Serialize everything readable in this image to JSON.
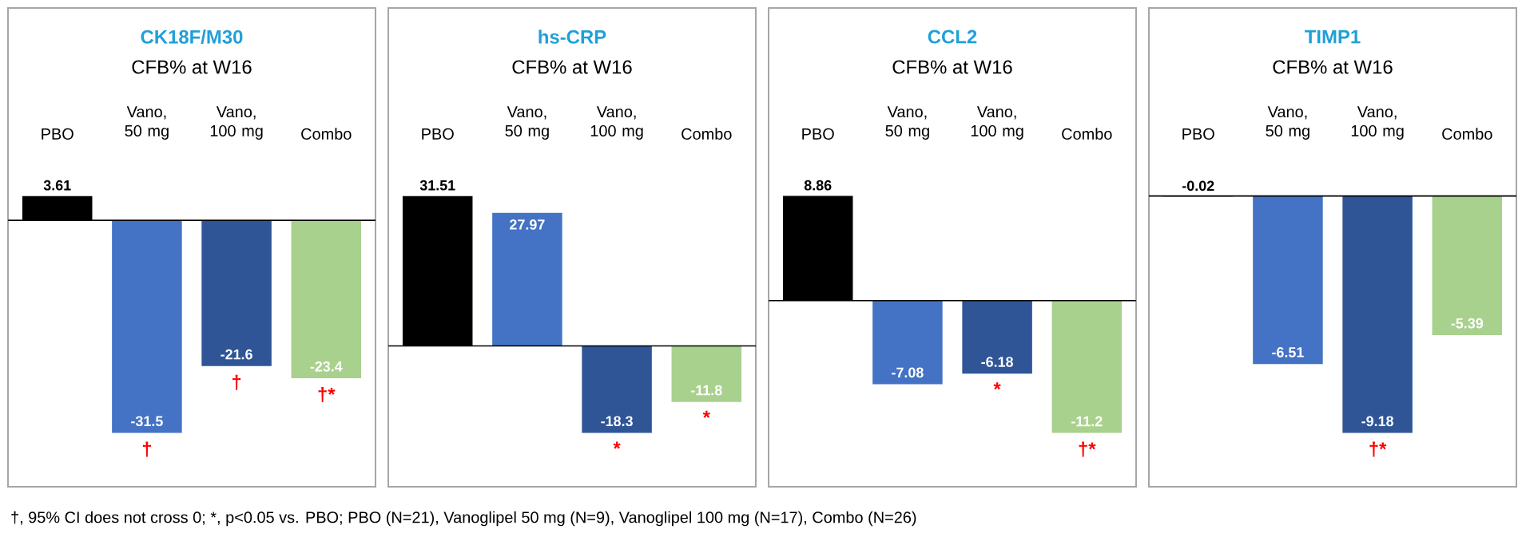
{
  "chart_data": [
    {
      "type": "bar",
      "title": "CK18F/M30",
      "subtitle": "CFB% at W16",
      "categories": [
        "PBO",
        "Vano, 50 mg",
        "Vano, 100 mg",
        "Combo"
      ],
      "values": [
        3.61,
        -31.5,
        -21.6,
        -23.4
      ],
      "colors": [
        "#000000",
        "#4472c4",
        "#2f5597",
        "#a9d18e"
      ],
      "data_labels": true,
      "annotations": [
        {
          "text": "†",
          "x": "Vano, 50 mg",
          "y": -31.5
        },
        {
          "text": "†",
          "x": "Vano, 100 mg",
          "y": -21.6
        },
        {
          "text": "†*",
          "x": "Combo",
          "y": -23.4
        },
        "†, 95% CI does not cross 0; *, p<0.05 vs. PBO; PBO (N=21), Vanoglipel 50 mg (N=9), Vanoglipel 100 mg (N=17), Combo (N=26)"
      ]
    },
    {
      "type": "bar",
      "title": "hs-CRP",
      "subtitle": "CFB% at W16",
      "categories": [
        "PBO",
        "Vano, 50 mg",
        "Vano, 100 mg",
        "Combo"
      ],
      "values": [
        31.51,
        27.97,
        -18.3,
        -11.8
      ],
      "colors": [
        "#000000",
        "#4472c4",
        "#2f5597",
        "#a9d18e"
      ],
      "data_labels": true,
      "annotations": [
        {
          "text": "*",
          "x": "Vano, 100 mg",
          "y": -18.3
        },
        {
          "text": "*",
          "x": "Combo",
          "y": -11.8
        }
      ]
    },
    {
      "type": "bar",
      "title": "CCL2",
      "subtitle": "CFB% at W16",
      "categories": [
        "PBO",
        "Vano, 50 mg",
        "Vano, 100 mg",
        "Combo"
      ],
      "values": [
        8.86,
        -7.08,
        -6.18,
        -11.2
      ],
      "colors": [
        "#000000",
        "#4472c4",
        "#2f5597",
        "#a9d18e"
      ],
      "data_labels": true,
      "annotations": [
        {
          "text": "*",
          "x": "Vano, 100 mg",
          "y": -6.18
        },
        {
          "text": "†*",
          "x": "Combo",
          "y": -11.2
        }
      ]
    },
    {
      "type": "bar",
      "title": "TIMP1",
      "subtitle": "CFB% at W16",
      "categories": [
        "PBO",
        "Vano, 50 mg",
        "Vano, 100 mg",
        "Combo"
      ],
      "values": [
        -0.02,
        -6.51,
        -9.18,
        -5.39
      ],
      "colors": [
        "#000000",
        "#4472c4",
        "#2f5597",
        "#a9d18e"
      ],
      "data_labels": true,
      "annotations": [
        {
          "text": "†*",
          "x": "Vano, 100 mg",
          "y": -9.18
        }
      ]
    }
  ]
}
